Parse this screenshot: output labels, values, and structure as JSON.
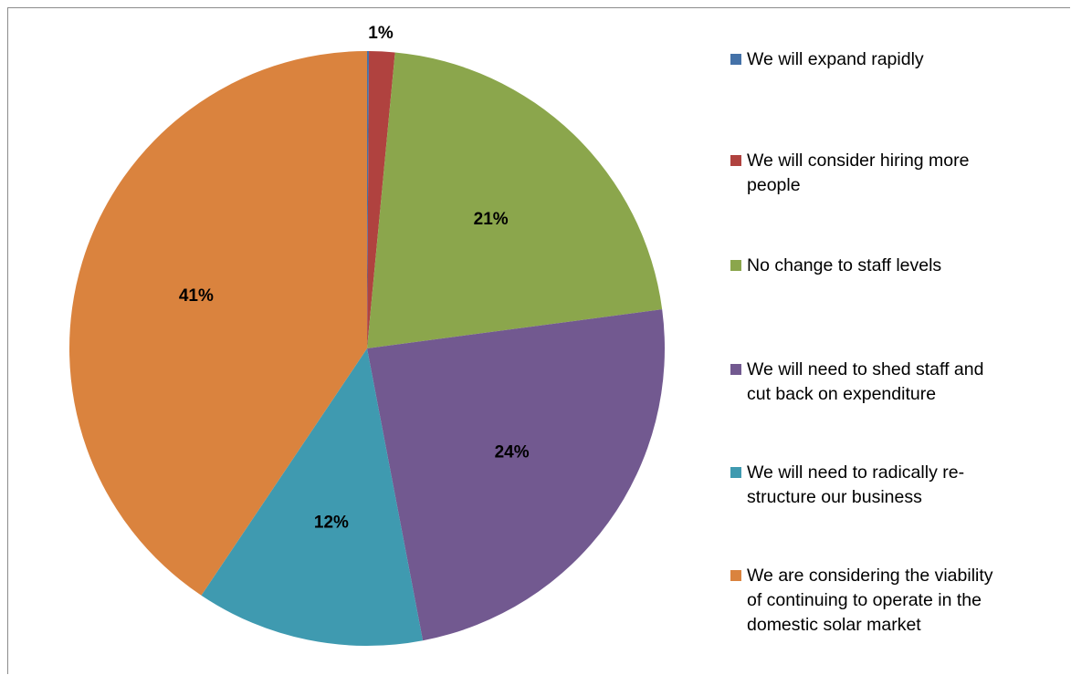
{
  "chart_data": {
    "type": "pie",
    "categories": [
      "We will expand rapidly",
      "We will consider hiring more people",
      "No change to staff levels",
      "We will need to shed staff and cut back on expenditure",
      "We will need to radically re-structure our business",
      "We are considering the viability of continuing to operate in the domestic solar market"
    ],
    "values": [
      0.1,
      1.4,
      21.4,
      24.1,
      12.4,
      40.6
    ],
    "data_labels": [
      "",
      "1%",
      "21%",
      "24%",
      "12%",
      "41%"
    ],
    "colors": [
      "#4472A8",
      "#B0423F",
      "#8BA64C",
      "#725990",
      "#3F9AB0",
      "#DA833E"
    ],
    "legend_position": "right",
    "title": "",
    "start_angle_deg": 0,
    "direction": "clockwise"
  },
  "legend": {
    "items": [
      {
        "lines": [
          "We will expand rapidly"
        ],
        "color": "#4472A8"
      },
      {
        "lines": [
          "We will consider hiring more",
          "people"
        ],
        "color": "#B0423F"
      },
      {
        "lines": [
          "No change to staff levels"
        ],
        "color": "#8BA64C"
      },
      {
        "lines": [
          "We will need to shed staff and",
          "cut back on expenditure"
        ],
        "color": "#725990"
      },
      {
        "lines": [
          "We will need to radically re-",
          "structure our business"
        ],
        "color": "#3F9AB0"
      },
      {
        "lines": [
          "We are considering the viability",
          "of continuing to operate in the",
          "domestic solar market"
        ],
        "color": "#DA833E"
      }
    ]
  }
}
